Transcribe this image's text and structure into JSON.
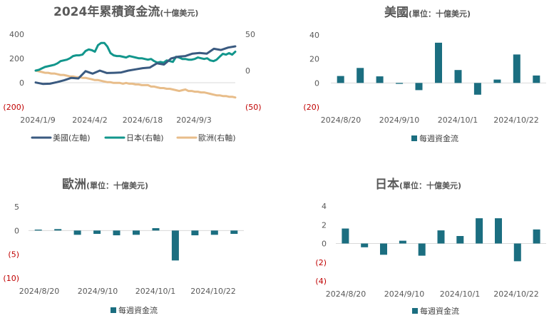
{
  "colors": {
    "us": "#3a5a80",
    "japan": "#12968c",
    "europe": "#e8bd8a",
    "bar": "#1b6e80",
    "negative": "#c00000",
    "text": "#595959"
  },
  "chart_data": [
    {
      "id": "cumulative",
      "type": "line",
      "title": "2024年累積資金流",
      "subtitle": "(十億美元)",
      "x_ticks": [
        "2024/1/9",
        "2024/4/2",
        "2024/6/18",
        "2024/9/3"
      ],
      "y_left_ticks": [
        "400",
        "200",
        "0",
        "(200)"
      ],
      "y_right_ticks": [
        "50",
        "0",
        "(50)"
      ],
      "ylim_left": [
        -200,
        400
      ],
      "ylim_right": [
        -50,
        50
      ],
      "series": [
        {
          "name": "美國(左軸)",
          "axis": "left",
          "color_key": "us",
          "values": [
            2,
            -10,
            -8,
            5,
            20,
            40,
            35,
            95,
            75,
            100,
            80,
            82,
            85,
            100,
            110,
            120,
            125,
            160,
            150,
            200,
            215,
            220,
            240,
            245,
            240,
            280,
            270,
            290,
            300
          ]
        },
        {
          "name": "日本(右軸)",
          "axis": "right",
          "color_key": "japan",
          "values": [
            0,
            1,
            3,
            5,
            6,
            7,
            8,
            10,
            13,
            14,
            15,
            17,
            20,
            21,
            21,
            22,
            27,
            29,
            28,
            26,
            35,
            38,
            38,
            33,
            24,
            21,
            20,
            20,
            19,
            18,
            20,
            19,
            18,
            17,
            17,
            16,
            15,
            16,
            13,
            11,
            12,
            11,
            14,
            13,
            12,
            19,
            18,
            16,
            16,
            15,
            15,
            16,
            18,
            17,
            16,
            17,
            14,
            13,
            15,
            19,
            23,
            22,
            24,
            22,
            26
          ]
        },
        {
          "name": "歐洲(右軸)",
          "axis": "right",
          "color_key": "europe",
          "values": [
            0,
            -1,
            -2,
            -3,
            -3,
            -4,
            -4,
            -5,
            -6,
            -6,
            -7,
            -8,
            -8,
            -9,
            -9,
            -10,
            -10,
            -11,
            -12,
            -13,
            -13,
            -14,
            -15,
            -16,
            -16,
            -17,
            -17,
            -17,
            -18,
            -17,
            -18,
            -18,
            -19,
            -19,
            -20,
            -20,
            -20,
            -22,
            -22,
            -23,
            -24,
            -24,
            -25,
            -25,
            -26,
            -27,
            -28,
            -27,
            -26,
            -28,
            -28,
            -29,
            -29,
            -30,
            -30,
            -31,
            -32,
            -33,
            -34,
            -34,
            -35,
            -35,
            -36,
            -36,
            -37
          ]
        }
      ]
    },
    {
      "id": "us",
      "type": "bar",
      "title": "美國",
      "subtitle": "(單位：十億美元)",
      "x_ticks": [
        "2024/8/20",
        "2024/9/10",
        "2024/10/1",
        "2024/10/22"
      ],
      "y_ticks": [
        "40",
        "20",
        "0",
        "(20)"
      ],
      "ylim": [
        -20,
        40
      ],
      "legend": "每週資金流",
      "values": [
        5.8,
        12.5,
        5.5,
        -0.8,
        -6,
        33.5,
        10.8,
        -9.8,
        2.8,
        23.7,
        6.2
      ]
    },
    {
      "id": "europe",
      "type": "bar",
      "title": "歐洲",
      "subtitle": "(單位：十億美元)",
      "x_ticks": [
        "2024/8/20",
        "2024/9/10",
        "2024/10/1",
        "2024/10/22"
      ],
      "y_ticks": [
        "5",
        "0",
        "(5)",
        "(10)"
      ],
      "ylim": [
        -10,
        5
      ],
      "legend": "每週資金流",
      "values": [
        0.2,
        0.3,
        -0.9,
        -0.7,
        -1.0,
        -0.9,
        0.5,
        -6.3,
        -1.0,
        -0.9,
        -0.7
      ]
    },
    {
      "id": "japan",
      "type": "bar",
      "title": "日本",
      "subtitle": "(單位：十億美元)",
      "x_ticks": [
        "2024/8/20",
        "2024/9/10",
        "2024/10/1",
        "2024/10/22"
      ],
      "y_ticks": [
        "4",
        "2",
        "0",
        "(2)",
        "(4)"
      ],
      "ylim": [
        -4,
        4
      ],
      "legend": "每週資金流",
      "values": [
        1.6,
        -0.4,
        -1.2,
        0.3,
        -1.3,
        1.4,
        0.8,
        2.7,
        2.7,
        -1.9,
        1.5
      ]
    }
  ]
}
